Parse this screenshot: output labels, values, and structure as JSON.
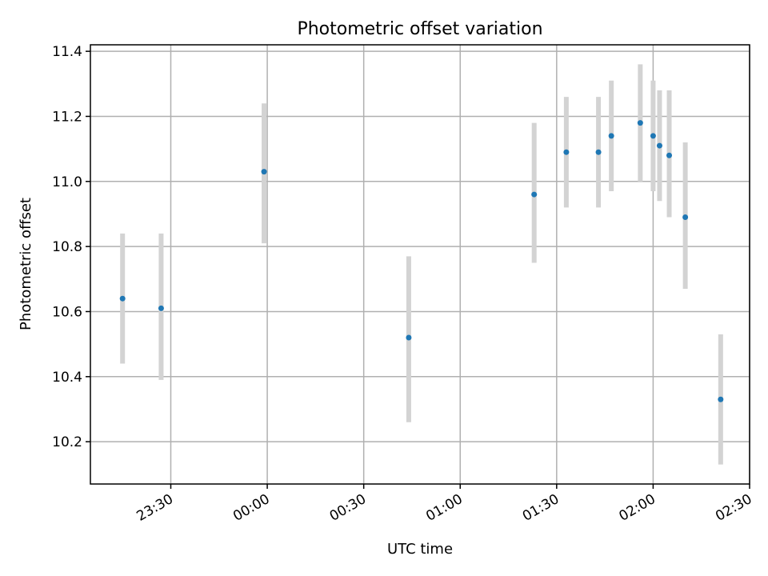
{
  "chart_data": {
    "type": "scatter",
    "title": "Photometric offset variation",
    "xlabel": "UTC time",
    "ylabel": "Photometric offset",
    "x_axis": {
      "kind": "time",
      "range": [
        "23:05",
        "02:30"
      ],
      "ticks": [
        "23:30",
        "00:00",
        "00:30",
        "01:00",
        "01:30",
        "02:00",
        "02:30"
      ]
    },
    "y_axis": {
      "range": [
        10.07,
        11.42
      ],
      "ticks": [
        "10.2",
        "10.4",
        "10.6",
        "10.8",
        "11.0",
        "11.2",
        "11.4"
      ]
    },
    "grid": true,
    "series": [
      {
        "marker_color": "#1f77b4",
        "errorbar_color": "#d3d3d3",
        "points": [
          {
            "x": "23:15",
            "y": 10.64,
            "y_low": 10.44,
            "y_high": 10.84
          },
          {
            "x": "23:27",
            "y": 10.61,
            "y_low": 10.39,
            "y_high": 10.84
          },
          {
            "x": "23:59",
            "y": 11.03,
            "y_low": 10.81,
            "y_high": 11.24
          },
          {
            "x": "00:44",
            "y": 10.52,
            "y_low": 10.26,
            "y_high": 10.77
          },
          {
            "x": "01:23",
            "y": 10.96,
            "y_low": 10.75,
            "y_high": 11.18
          },
          {
            "x": "01:33",
            "y": 11.09,
            "y_low": 10.92,
            "y_high": 11.26
          },
          {
            "x": "01:43",
            "y": 11.09,
            "y_low": 10.92,
            "y_high": 11.26
          },
          {
            "x": "01:47",
            "y": 11.14,
            "y_low": 10.97,
            "y_high": 11.31
          },
          {
            "x": "01:56",
            "y": 11.18,
            "y_low": 11.0,
            "y_high": 11.36
          },
          {
            "x": "02:00",
            "y": 11.14,
            "y_low": 10.97,
            "y_high": 11.31
          },
          {
            "x": "02:02",
            "y": 11.11,
            "y_low": 10.94,
            "y_high": 11.28
          },
          {
            "x": "02:05",
            "y": 11.08,
            "y_low": 10.89,
            "y_high": 11.28
          },
          {
            "x": "02:10",
            "y": 10.89,
            "y_low": 10.67,
            "y_high": 11.12
          },
          {
            "x": "02:21",
            "y": 10.33,
            "y_low": 10.13,
            "y_high": 10.53
          }
        ]
      }
    ]
  }
}
